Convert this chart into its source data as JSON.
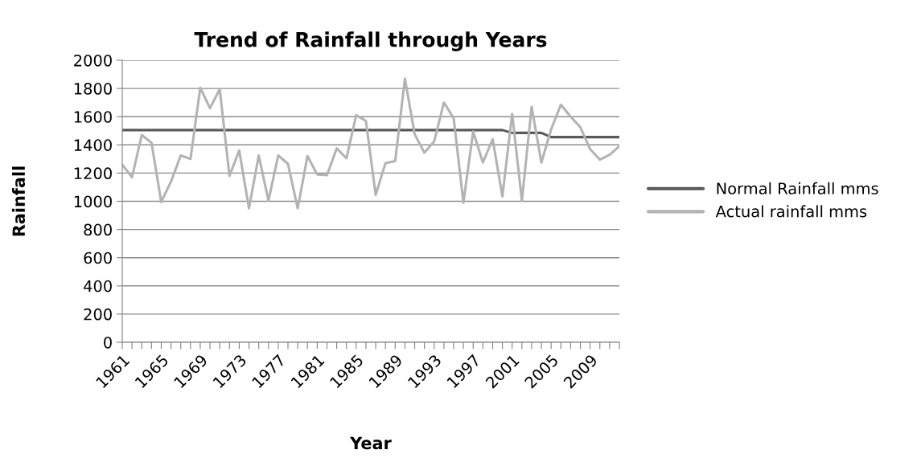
{
  "chart_data": {
    "type": "line",
    "title": "Trend of Rainfall through Years",
    "xlabel": "Year",
    "ylabel": "Rainfall",
    "categories": [
      "1961",
      null,
      null,
      null,
      "1965",
      null,
      null,
      null,
      "1969",
      null,
      null,
      null,
      "1973",
      null,
      null,
      null,
      "1977",
      null,
      null,
      null,
      "1981",
      null,
      null,
      null,
      "1985",
      null,
      null,
      null,
      "1989",
      null,
      null,
      null,
      "1993",
      null,
      null,
      null,
      "1997",
      null,
      null,
      null,
      "2001",
      null,
      null,
      null,
      "2005",
      null,
      null,
      null,
      "2009",
      null,
      null,
      null
    ],
    "series": [
      {
        "name": "Normal Rainfall mms",
        "color": "#595959",
        "values": [
          1505,
          1505,
          1505,
          1505,
          1505,
          1505,
          1505,
          1505,
          1505,
          1505,
          1505,
          1505,
          1505,
          1505,
          1505,
          1505,
          1505,
          1505,
          1505,
          1505,
          1505,
          1505,
          1505,
          1505,
          1505,
          1505,
          1505,
          1505,
          1505,
          1505,
          1505,
          1505,
          1505,
          1505,
          1505,
          1505,
          1505,
          1505,
          1505,
          1505,
          1485,
          1485,
          1485,
          1485,
          1455,
          1455,
          1455,
          1455,
          1455,
          1455,
          1455,
          1455
        ]
      },
      {
        "name": "Actual rainfall mms",
        "color": "#b3b3b3",
        "values": [
          1260,
          1170,
          1470,
          1415,
          995,
          1140,
          1325,
          1300,
          1805,
          1660,
          1795,
          1180,
          1360,
          950,
          1325,
          1005,
          1325,
          1265,
          950,
          1320,
          1190,
          1185,
          1375,
          1305,
          1610,
          1570,
          1045,
          1270,
          1285,
          1870,
          1475,
          1345,
          1425,
          1700,
          1590,
          990,
          1495,
          1275,
          1440,
          1035,
          1620,
          1005,
          1670,
          1275,
          1510,
          1685,
          1600,
          1525,
          1370,
          1295,
          1330,
          1390
        ]
      }
    ],
    "ylim": [
      0,
      2000
    ],
    "yticks": [
      0,
      200,
      400,
      600,
      800,
      1000,
      1200,
      1400,
      1600,
      1800,
      2000
    ],
    "grid": "y",
    "legend": "right",
    "marker": "none",
    "line_style": "solid"
  }
}
